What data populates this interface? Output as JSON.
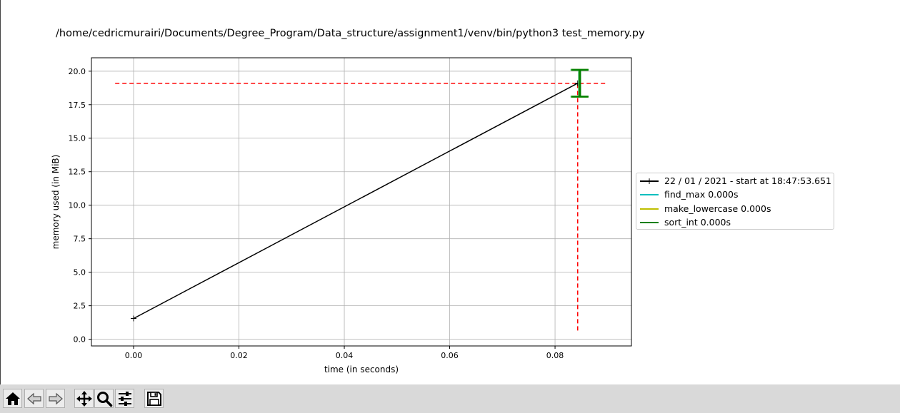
{
  "window": {
    "title": "/home/cedricmurairi/Documents/Degree_Program/Data_structure/assignment1/venv/bin/python3 test_memory.py"
  },
  "toolbar": {
    "buttons": [
      {
        "name": "home-button",
        "icon": "home-icon"
      },
      {
        "name": "back-button",
        "icon": "back-arrow-icon"
      },
      {
        "name": "forward-button",
        "icon": "forward-arrow-icon"
      },
      {
        "name": "pan-button",
        "icon": "move-icon"
      },
      {
        "name": "zoom-button",
        "icon": "magnifier-icon"
      },
      {
        "name": "configure-subplots-button",
        "icon": "sliders-icon"
      },
      {
        "name": "save-button",
        "icon": "floppy-disk-icon"
      }
    ]
  },
  "chart_data": {
    "type": "line",
    "xlabel": "time (in seconds)",
    "ylabel": "memory used (in MiB)",
    "xlim": [
      -0.008,
      0.0945
    ],
    "ylim": [
      -0.5,
      21.0
    ],
    "xticks": [
      0.0,
      0.02,
      0.04,
      0.06,
      0.08
    ],
    "xtick_labels": [
      "0.00",
      "0.02",
      "0.04",
      "0.06",
      "0.08"
    ],
    "yticks": [
      0.0,
      2.5,
      5.0,
      7.5,
      10.0,
      12.5,
      15.0,
      17.5,
      20.0
    ],
    "ytick_labels": [
      "0.0",
      "2.5",
      "5.0",
      "7.5",
      "10.0",
      "12.5",
      "15.0",
      "17.5",
      "20.0"
    ],
    "grid": true,
    "legend_position": "outside-right",
    "series": [
      {
        "name": "22 / 01 / 2021 - start at 18:47:53.651",
        "color": "#000000",
        "marker": "+",
        "x": [
          0.0,
          0.0843
        ],
        "y": [
          1.55,
          19.1
        ]
      }
    ],
    "function_markers": [
      {
        "name": "find_max 0.000s",
        "color": "#00bfbf",
        "x": 0.0843,
        "y_min": 18.1,
        "y_max": 20.1
      },
      {
        "name": "make_lowercase 0.000s",
        "color": "#bfbf00",
        "x": 0.0843,
        "y_min": 18.1,
        "y_max": 20.1
      },
      {
        "name": "sort_int 0.000s",
        "color": "#008000",
        "x": 0.0843,
        "y_min": 18.1,
        "y_max": 20.1
      }
    ],
    "peak_lines": {
      "color": "#ff0000",
      "horizontal_y": 19.1,
      "horizontal_x": [
        -0.0035,
        0.0898
      ],
      "vertical_x": 0.0843,
      "vertical_y": [
        0.65,
        19.1
      ]
    }
  }
}
